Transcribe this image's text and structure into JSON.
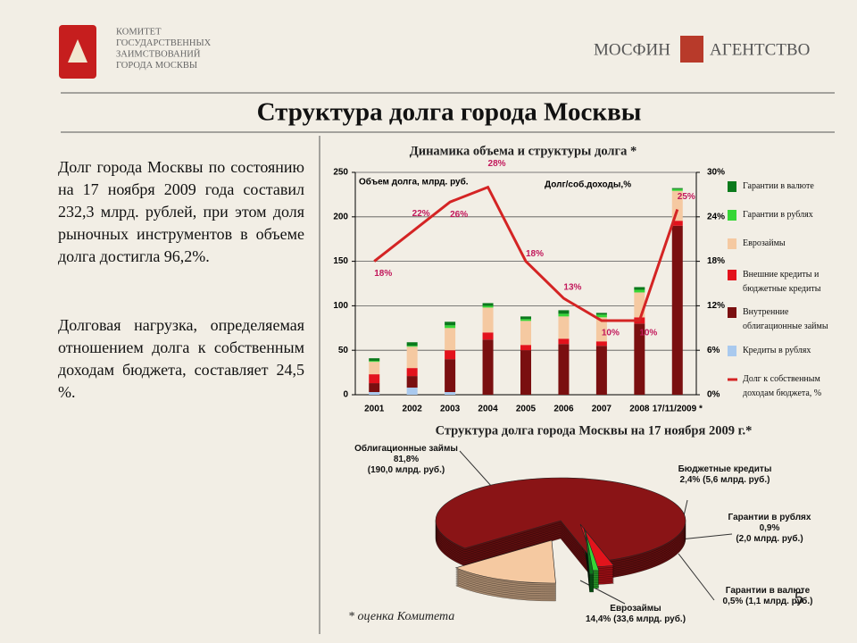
{
  "header": {
    "committee": [
      "КОМИТЕТ",
      "ГОСУДАРСТВЕННЫХ",
      "ЗАИМСТВОВАНИЙ",
      "ГОРОДА МОСКВЫ"
    ],
    "brand_left": "МОСФИН",
    "brand_right": "АГЕНТСТВО"
  },
  "title": "Структура долга города Москвы",
  "paragraphs": [
    "Долг города Москвы по состоянию на 17 ноября 2009 года составил 232,3 млрд. рублей, при этом доля рыночных инструментов в объеме долга достигла 96,2%.",
    "Долговая нагрузка, определяемая отношением долга к собственным доходам бюджета, составляет 24,5 %."
  ],
  "footnote": "* оценка Комитета",
  "page_number": "5",
  "chart_data": [
    {
      "type": "bar",
      "stacked": true,
      "title": "Динамика объема и структуры долга *",
      "annotations": [
        "Объем долга, млрд. руб.",
        "Долг/соб.доходы,%"
      ],
      "categories": [
        "2001",
        "2002",
        "2003",
        "2004",
        "2005",
        "2006",
        "2007",
        "2008",
        "17/11/2009 *"
      ],
      "series": [
        {
          "name": "Кредиты в рублях",
          "color": "#a9c9ee",
          "values": [
            3,
            8,
            3,
            0,
            0,
            0,
            0,
            0,
            0
          ]
        },
        {
          "name": "Внутренние облигационные займы",
          "color": "#7a0f10",
          "values": [
            10,
            13,
            37,
            62,
            50,
            57,
            55,
            80,
            190
          ]
        },
        {
          "name": "Внешние кредиты и бюджетные кредиты",
          "color": "#e3121c",
          "values": [
            10,
            9,
            10,
            8,
            6,
            6,
            5,
            7,
            5.6
          ]
        },
        {
          "name": "Еврозаймы",
          "color": "#f5c9a1",
          "values": [
            14,
            24,
            25,
            28,
            27,
            25,
            27,
            28,
            33.6
          ]
        },
        {
          "name": "Гарантии в рублях",
          "color": "#36d636",
          "values": [
            1,
            1,
            3,
            2,
            2,
            3,
            3,
            3,
            2
          ]
        },
        {
          "name": "Гарантии в валюте",
          "color": "#0b7a1c",
          "values": [
            3,
            4,
            4,
            3,
            3,
            4,
            2,
            3,
            1.1
          ]
        },
        {
          "name": "Долг к собственным доходам бюджета, %",
          "type": "line",
          "axis": "y2",
          "color": "#d42424",
          "values": [
            18,
            22,
            26,
            28,
            18,
            13,
            10,
            10,
            25
          ],
          "value_labels": [
            "18%",
            "22%",
            "26%",
            "28%",
            "18%",
            "13%",
            "10%",
            "10%",
            "25%"
          ]
        }
      ],
      "ylim": [
        0,
        250
      ],
      "yticks": [
        0,
        50,
        100,
        150,
        200,
        250
      ],
      "y2lim": [
        0,
        30
      ],
      "y2ticks": [
        {
          "value": 0,
          "label": "0%"
        },
        {
          "value": 6,
          "label": "6%"
        },
        {
          "value": 12,
          "label": "12%"
        },
        {
          "value": 18,
          "label": "18%"
        },
        {
          "value": 24,
          "label": "24%"
        },
        {
          "value": 30,
          "label": "30%"
        }
      ],
      "grid": true
    },
    {
      "type": "pie",
      "title": "Структура долга города Москвы на 17 ноября 2009 г.*",
      "categories": [
        "Облигационные займы",
        "Бюджетные кредиты",
        "Гарантии в рублях",
        "Гарантии в валюте",
        "Еврозаймы"
      ],
      "values": [
        81.8,
        2.4,
        0.9,
        0.5,
        14.4
      ],
      "value_labels": [
        "81,8%",
        "2,4%",
        "0,9%",
        "0,5%",
        "14,4%"
      ],
      "amounts": [
        "(190,0 млрд. руб.)",
        "(5,6 млрд. руб.)",
        "(2,0 млрд. руб.)",
        "(1,1 млрд. руб.)",
        "(33,6 млрд. руб.)"
      ],
      "colors": [
        "#8a1416",
        "#e2141c",
        "#36d636",
        "#0b7a1c",
        "#f5c9a1"
      ]
    }
  ]
}
